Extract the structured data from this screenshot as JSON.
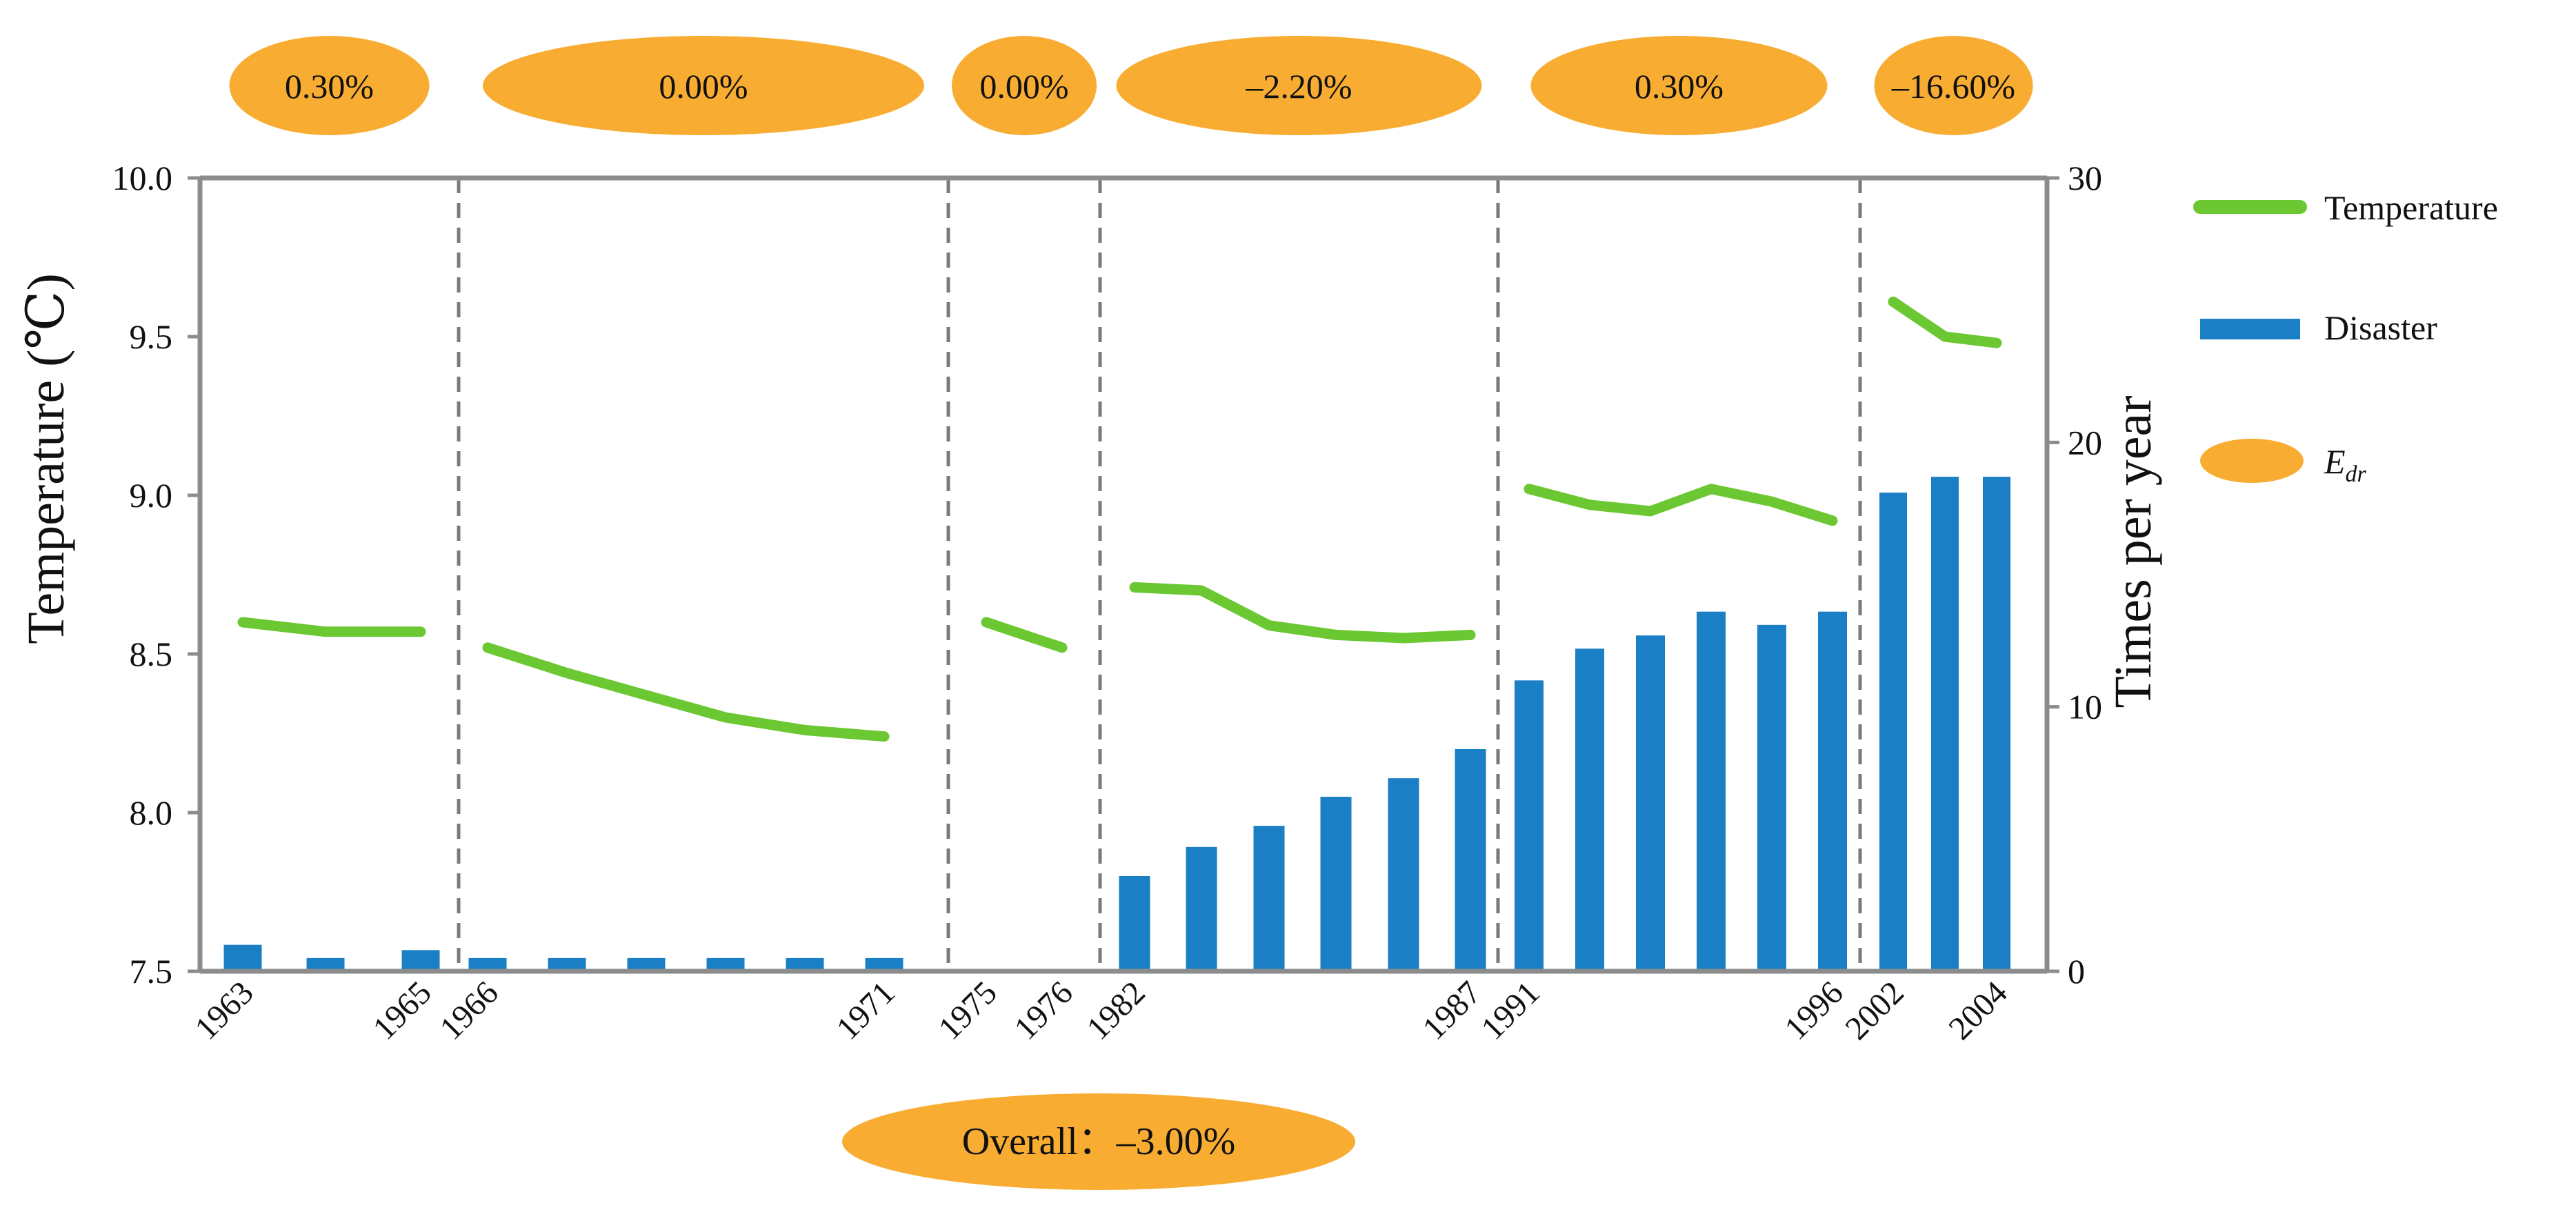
{
  "colors": {
    "temperature": "#6cc832",
    "disaster": "#1a7fc4",
    "edr": "#f8ad32",
    "axis": "#8c8c8c",
    "divider": "#7a7a7a"
  },
  "chart_data": {
    "type": "bar+line",
    "title": "",
    "ylabel_left": "Temperature (℃)",
    "ylabel_right": "Times  per year",
    "ylim_left": [
      7.5,
      10.0
    ],
    "ylim_right": [
      0,
      30
    ],
    "yticks_left": [
      "7.5",
      "8.0",
      "8.5",
      "9.0",
      "9.5",
      "10.0"
    ],
    "yticks_right": [
      "0",
      "10",
      "20",
      "30"
    ],
    "legend": {
      "position": "right",
      "temperature": "Temperature",
      "disaster": "Disaster",
      "edr_main": "E",
      "edr_sub": "dr"
    },
    "overall_label": "Overall：–3.00%",
    "segments": [
      {
        "edr_label": "0.30%",
        "tick_labels": [
          "1963",
          "1965"
        ],
        "temperature": [
          8.6,
          8.57,
          8.57
        ],
        "disaster": [
          1.0,
          0.5,
          0.8
        ]
      },
      {
        "edr_label": "0.00%",
        "tick_labels": [
          "1966",
          "1971"
        ],
        "temperature": [
          8.52,
          8.44,
          8.37,
          8.3,
          8.26,
          8.24
        ],
        "disaster": [
          0.5,
          0.5,
          0.5,
          0.5,
          0.5,
          0.5
        ]
      },
      {
        "edr_label": "0.00%",
        "tick_labels": [
          "1975",
          "1976"
        ],
        "temperature": [
          8.6,
          8.52
        ],
        "disaster": [
          0,
          0
        ]
      },
      {
        "edr_label": "–2.20%",
        "tick_labels": [
          "1982",
          "1987"
        ],
        "temperature": [
          8.71,
          8.7,
          8.59,
          8.56,
          8.55,
          8.56
        ],
        "disaster": [
          3.6,
          4.7,
          5.5,
          6.6,
          7.3,
          8.4
        ]
      },
      {
        "edr_label": "0.30%",
        "tick_labels": [
          "1991",
          "1996"
        ],
        "temperature": [
          9.02,
          8.97,
          8.95,
          9.02,
          8.98,
          8.92
        ],
        "disaster": [
          11.0,
          12.2,
          12.7,
          13.6,
          13.1,
          13.6
        ]
      },
      {
        "edr_label": "–16.60%",
        "tick_labels": [
          "2002",
          "2004"
        ],
        "temperature": [
          9.61,
          9.5,
          9.48
        ],
        "disaster": [
          18.1,
          18.7,
          18.7
        ]
      }
    ]
  }
}
